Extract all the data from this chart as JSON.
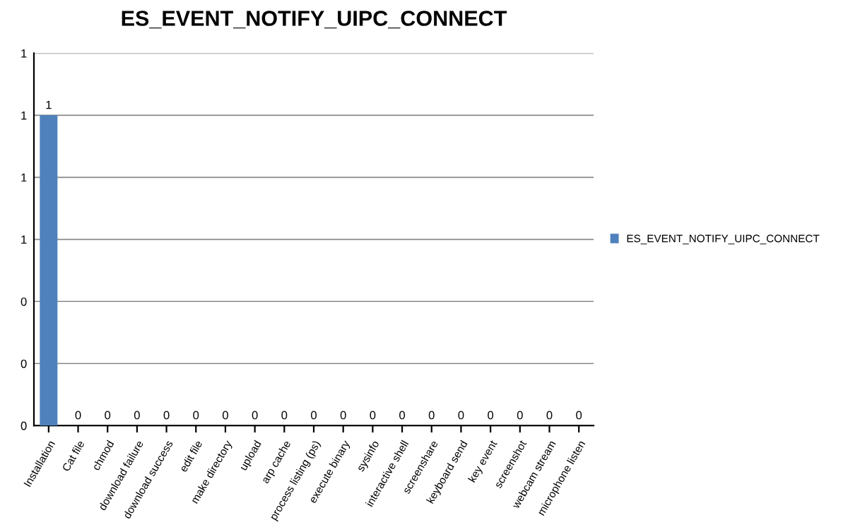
{
  "chart_data": {
    "type": "bar",
    "title": "ES_EVENT_NOTIFY_UIPC_CONNECT",
    "categories": [
      "Installation",
      "Cat file",
      "chmod",
      "download failure",
      "download success",
      "edit file",
      "make directory",
      "upload",
      "arp cache",
      "process listing (ps)",
      "execute binary",
      "sysinfo",
      "interactive shell",
      "screenshare",
      "keyboard send",
      "key event",
      "screenshot",
      "webcam stream",
      "microphone listen"
    ],
    "series": [
      {
        "name": "ES_EVENT_NOTIFY_UIPC_CONNECT",
        "color": "#4f81bd",
        "values": [
          1,
          0,
          0,
          0,
          0,
          0,
          0,
          0,
          0,
          0,
          0,
          0,
          0,
          0,
          0,
          0,
          0,
          0,
          0
        ]
      }
    ],
    "ylim": [
      0,
      1.2
    ],
    "yticks": [
      {
        "value": 0,
        "label": "0"
      },
      {
        "value": 0.2,
        "label": "0"
      },
      {
        "value": 0.4,
        "label": "0"
      },
      {
        "value": 0.6,
        "label": "1"
      },
      {
        "value": 0.8,
        "label": "1"
      },
      {
        "value": 1.0,
        "label": "1"
      },
      {
        "value": 1.2,
        "label": "1"
      }
    ],
    "grid": "y",
    "legend": "right",
    "data_labels": true
  }
}
